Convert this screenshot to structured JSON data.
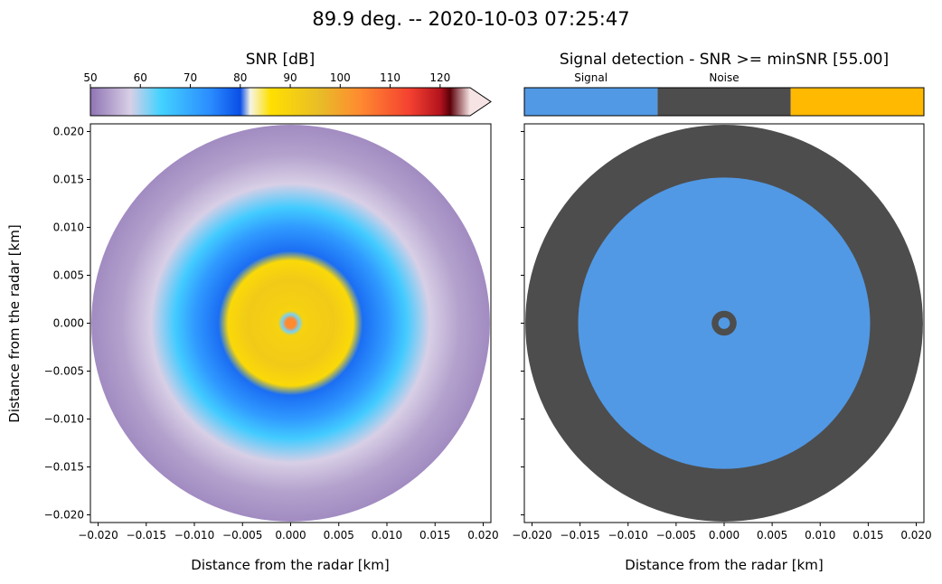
{
  "figure": {
    "title": "89.9 deg. -- 2020-10-03 07:25:47"
  },
  "chart_data": [
    {
      "type": "heatmap",
      "subtype": "polar-ppi",
      "title": "SNR [dB]",
      "xlabel": "Distance from the radar [km]",
      "ylabel": "Distance from the radar [km]",
      "xlim": [
        -0.0208,
        0.0208
      ],
      "ylim": [
        -0.0208,
        0.0208
      ],
      "xticks": [
        "−0.020",
        "−0.015",
        "−0.010",
        "−0.005",
        "0.000",
        "0.005",
        "0.010",
        "0.015",
        "0.020"
      ],
      "yticks": [
        "0.020",
        "0.015",
        "0.010",
        "0.005",
        "0.000",
        "−0.005",
        "−0.010",
        "−0.015",
        "−0.020"
      ],
      "max_range_km": 0.0207,
      "colorbar": {
        "label": "SNR [dB]",
        "range": [
          50,
          126
        ],
        "ticks": [
          "50",
          "60",
          "70",
          "80",
          "90",
          "100",
          "110",
          "120"
        ],
        "extend": "max",
        "stops": [
          {
            "value": 50,
            "color": "#8f74b4"
          },
          {
            "value": 58,
            "color": "#d8cfe6"
          },
          {
            "value": 64,
            "color": "#44d2ff"
          },
          {
            "value": 74,
            "color": "#2b8cff"
          },
          {
            "value": 80,
            "color": "#0a4fe6"
          },
          {
            "value": 82,
            "color": "#f6f4e6"
          },
          {
            "value": 86,
            "color": "#ffe000"
          },
          {
            "value": 96,
            "color": "#e8bc28"
          },
          {
            "value": 104,
            "color": "#ff8a30"
          },
          {
            "value": 114,
            "color": "#f44030"
          },
          {
            "value": 120,
            "color": "#b4141e"
          },
          {
            "value": 122,
            "color": "#5c0008"
          },
          {
            "value": 126,
            "color": "#f6e4e4"
          }
        ]
      },
      "radial_profile_km_db": [
        {
          "r": 0.0,
          "snr": 104
        },
        {
          "r": 0.0005,
          "snr": 104
        },
        {
          "r": 0.0009,
          "snr": 62
        },
        {
          "r": 0.0013,
          "snr": 90
        },
        {
          "r": 0.0045,
          "snr": 92
        },
        {
          "r": 0.0065,
          "snr": 88
        },
        {
          "r": 0.0075,
          "snr": 77
        },
        {
          "r": 0.01,
          "snr": 72
        },
        {
          "r": 0.012,
          "snr": 65
        },
        {
          "r": 0.0145,
          "snr": 58
        },
        {
          "r": 0.0175,
          "snr": 54
        },
        {
          "r": 0.0207,
          "snr": 52
        }
      ]
    },
    {
      "type": "heatmap",
      "subtype": "polar-ppi-categorical",
      "title": "Signal detection - SNR >= minSNR [55.00]",
      "xlabel": "Distance from the radar [km]",
      "xlim": [
        -0.0208,
        0.0208
      ],
      "ylim": [
        -0.0208,
        0.0208
      ],
      "xticks": [
        "−0.020",
        "−0.015",
        "−0.010",
        "−0.005",
        "0.000",
        "0.005",
        "0.010",
        "0.015",
        "0.020"
      ],
      "max_range_km": 0.0207,
      "categories": [
        {
          "label": "Signal",
          "color": "#5199e5"
        },
        {
          "label": "Noise",
          "color": "#4d4d4d"
        },
        {
          "label": "",
          "color": "#ffb900"
        }
      ],
      "radial_classification_km": [
        {
          "r_from": 0.0,
          "r_to": 0.0006,
          "class": "Signal"
        },
        {
          "r_from": 0.0006,
          "r_to": 0.0013,
          "class": "Noise"
        },
        {
          "r_from": 0.0013,
          "r_to": 0.0152,
          "class": "Signal"
        },
        {
          "r_from": 0.0152,
          "r_to": 0.0207,
          "class": "Noise"
        }
      ]
    }
  ]
}
